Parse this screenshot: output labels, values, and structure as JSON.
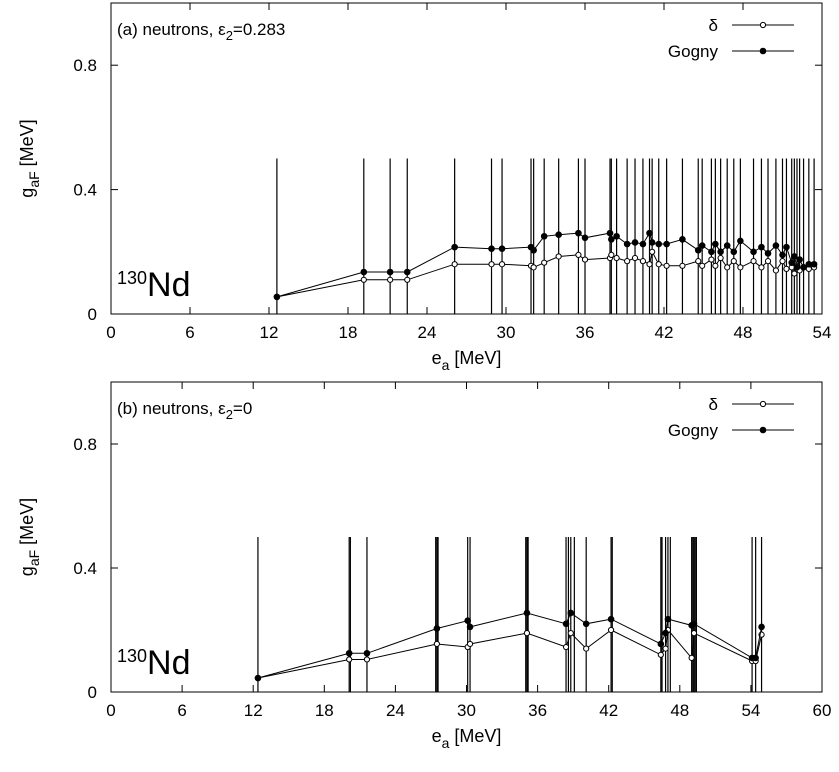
{
  "chart_data": [
    {
      "type": "line",
      "panel_label": "(a) neutrons, ε",
      "panel_sub": "2",
      "panel_suffix": "=0.283",
      "nucleus_mass": "130",
      "nucleus_symbol": "Nd",
      "xlabel": "e",
      "xlabel_sub": "a",
      "xlabel_suffix": " [MeV]",
      "ylabel": "g",
      "ylabel_sub": "aF",
      "ylabel_suffix": " [MeV]",
      "xlim": [
        0,
        54
      ],
      "ylim": [
        0,
        1
      ],
      "xticks": [
        "0",
        "6",
        "12",
        "18",
        "24",
        "30",
        "36",
        "42",
        "48",
        "54"
      ],
      "xtick_values": [
        0,
        6,
        12,
        18,
        24,
        30,
        36,
        42,
        48,
        54
      ],
      "yticks": [
        "0",
        "0.4",
        "0.8"
      ],
      "ytick_values": [
        0,
        0.4,
        0.8
      ],
      "level_height": 0.5,
      "levels": [
        12.6,
        19.2,
        21.2,
        22.5,
        26.1,
        28.9,
        29.7,
        31.9,
        32.1,
        32.9,
        34.0,
        35.5,
        36.0,
        37.9,
        38.0,
        38.4,
        39.2,
        39.8,
        40.4,
        40.9,
        41.1,
        41.6,
        42.2,
        43.4,
        44.6,
        44.9,
        45.6,
        45.9,
        46.3,
        46.8,
        47.3,
        47.8,
        48.8,
        49.4,
        49.9,
        50.5,
        51.0,
        51.3,
        51.7,
        51.9,
        52.1,
        52.3,
        52.6,
        53.0,
        53.4
      ],
      "series": [
        {
          "name": "δ",
          "marker": "open",
          "x": [
            12.6,
            19.2,
            21.2,
            22.5,
            26.1,
            28.9,
            29.7,
            31.9,
            32.1,
            32.9,
            34.0,
            35.5,
            36.0,
            37.9,
            38.0,
            38.4,
            39.2,
            39.8,
            40.4,
            40.9,
            41.1,
            41.6,
            42.2,
            43.4,
            44.6,
            44.9,
            45.6,
            45.9,
            46.3,
            46.8,
            47.3,
            47.8,
            48.8,
            49.4,
            49.9,
            50.5,
            51.0,
            51.3,
            51.7,
            51.9,
            52.1,
            52.3,
            52.6,
            53.0,
            53.4
          ],
          "y": [
            0.055,
            0.11,
            0.11,
            0.11,
            0.16,
            0.16,
            0.16,
            0.155,
            0.15,
            0.165,
            0.185,
            0.19,
            0.175,
            0.18,
            0.19,
            0.18,
            0.17,
            0.18,
            0.17,
            0.16,
            0.2,
            0.16,
            0.155,
            0.155,
            0.17,
            0.155,
            0.175,
            0.155,
            0.18,
            0.15,
            0.17,
            0.15,
            0.17,
            0.15,
            0.17,
            0.14,
            0.17,
            0.145,
            0.15,
            0.13,
            0.155,
            0.14,
            0.15,
            0.145,
            0.15
          ]
        },
        {
          "name": "Gogny",
          "marker": "filled",
          "x": [
            12.6,
            19.2,
            21.2,
            22.5,
            26.1,
            28.9,
            29.7,
            31.9,
            32.1,
            32.9,
            34.0,
            35.5,
            36.0,
            37.9,
            38.0,
            38.4,
            39.2,
            39.8,
            40.4,
            40.9,
            41.1,
            41.6,
            42.2,
            43.4,
            44.6,
            44.9,
            45.6,
            45.9,
            46.3,
            46.8,
            47.3,
            47.8,
            48.8,
            49.4,
            49.9,
            50.5,
            51.0,
            51.3,
            51.7,
            51.9,
            52.1,
            52.3,
            52.6,
            53.0,
            53.4
          ],
          "y": [
            0.055,
            0.135,
            0.135,
            0.135,
            0.215,
            0.21,
            0.21,
            0.215,
            0.205,
            0.25,
            0.255,
            0.26,
            0.245,
            0.26,
            0.24,
            0.25,
            0.225,
            0.23,
            0.225,
            0.26,
            0.23,
            0.225,
            0.225,
            0.24,
            0.205,
            0.22,
            0.2,
            0.225,
            0.2,
            0.22,
            0.2,
            0.235,
            0.2,
            0.215,
            0.195,
            0.22,
            0.19,
            0.215,
            0.165,
            0.185,
            0.15,
            0.175,
            0.15,
            0.16,
            0.16
          ]
        }
      ],
      "legend_position": "top-right"
    },
    {
      "type": "line",
      "panel_label": "(b) neutrons, ε",
      "panel_sub": "2",
      "panel_suffix": "=0",
      "nucleus_mass": "130",
      "nucleus_symbol": "Nd",
      "xlabel": "e",
      "xlabel_sub": "a",
      "xlabel_suffix": " [MeV]",
      "ylabel": "g",
      "ylabel_sub": "aF",
      "ylabel_suffix": " [MeV]",
      "xlim": [
        0,
        60
      ],
      "ylim": [
        0,
        1
      ],
      "xticks": [
        "0",
        "6",
        "12",
        "18",
        "24",
        "30",
        "36",
        "42",
        "48",
        "54",
        "60"
      ],
      "xtick_values": [
        0,
        6,
        12,
        18,
        24,
        30,
        36,
        42,
        48,
        54,
        60
      ],
      "yticks": [
        "0",
        "0.4",
        "0.8"
      ],
      "ytick_values": [
        0,
        0.4,
        0.8
      ],
      "level_height": 0.5,
      "levels": [
        12.4,
        20.1,
        20.2,
        21.6,
        27.4,
        27.5,
        27.6,
        30.1,
        30.3,
        35.0,
        35.1,
        35.2,
        38.4,
        38.6,
        38.8,
        39.1,
        40.1,
        42.2,
        42.3,
        46.4,
        46.5,
        46.8,
        47.0,
        47.2,
        49.0,
        49.1,
        49.2,
        49.3,
        49.4,
        54.1,
        54.4,
        54.9
      ],
      "series": [
        {
          "name": "δ",
          "marker": "open",
          "x": [
            12.4,
            20.1,
            21.6,
            27.5,
            30.1,
            30.3,
            35.1,
            38.4,
            38.8,
            40.1,
            42.2,
            46.4,
            46.8,
            47.0,
            49.0,
            49.2,
            54.1,
            54.4,
            54.9
          ],
          "y": [
            0.045,
            0.105,
            0.105,
            0.155,
            0.145,
            0.155,
            0.19,
            0.145,
            0.19,
            0.14,
            0.2,
            0.12,
            0.14,
            0.2,
            0.11,
            0.19,
            0.1,
            0.1,
            0.185
          ]
        },
        {
          "name": "Gogny",
          "marker": "filled",
          "x": [
            12.4,
            20.1,
            21.6,
            27.5,
            30.1,
            30.3,
            35.1,
            38.4,
            38.8,
            40.1,
            42.2,
            46.4,
            46.8,
            47.0,
            49.0,
            49.2,
            54.1,
            54.4,
            54.9
          ],
          "y": [
            0.045,
            0.125,
            0.125,
            0.205,
            0.23,
            0.21,
            0.255,
            0.22,
            0.255,
            0.22,
            0.235,
            0.155,
            0.19,
            0.235,
            0.215,
            0.22,
            0.11,
            0.11,
            0.21
          ]
        }
      ],
      "legend_position": "top-right"
    }
  ]
}
